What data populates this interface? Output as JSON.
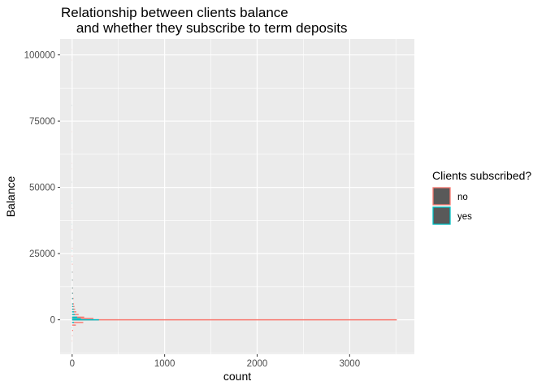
{
  "chart_data": {
    "type": "histogram",
    "orientation": "horizontal",
    "title": "Relationship between clients balance\n    and whether they subscribe to term deposits",
    "xlabel": "count",
    "ylabel": "Balance",
    "xlim": [
      -130,
      3700
    ],
    "ylim": [
      -13000,
      106000
    ],
    "x_ticks": [
      0,
      1000,
      2000,
      3000
    ],
    "x_tick_labels": [
      "0",
      "1000",
      "2000",
      "3000"
    ],
    "y_ticks": [
      0,
      25000,
      50000,
      75000,
      100000
    ],
    "y_tick_labels": [
      "0",
      "25000",
      "50000",
      "75000",
      "100000"
    ],
    "grid": true,
    "legend": {
      "title": "Clients subscribed?",
      "position": "right",
      "entries": [
        {
          "label": "no",
          "color": "#F8766D"
        },
        {
          "label": "yes",
          "color": "#00BFC4"
        }
      ]
    },
    "series": [
      {
        "name": "no",
        "color": "#F8766D",
        "bins": [
          {
            "y": -8000,
            "count": 2
          },
          {
            "y": -6000,
            "count": 4
          },
          {
            "y": -4000,
            "count": 10
          },
          {
            "y": -2000,
            "count": 40
          },
          {
            "y": -1000,
            "count": 120
          },
          {
            "y": 0,
            "count": 3510
          },
          {
            "y": 500,
            "count": 230
          },
          {
            "y": 1000,
            "count": 130
          },
          {
            "y": 2000,
            "count": 70
          },
          {
            "y": 3000,
            "count": 45
          },
          {
            "y": 4000,
            "count": 32
          },
          {
            "y": 5000,
            "count": 25
          },
          {
            "y": 6000,
            "count": 20
          },
          {
            "y": 8000,
            "count": 15
          },
          {
            "y": 10000,
            "count": 11
          },
          {
            "y": 12000,
            "count": 9
          },
          {
            "y": 15000,
            "count": 7
          },
          {
            "y": 18000,
            "count": 5
          },
          {
            "y": 21000,
            "count": 4
          },
          {
            "y": 24000,
            "count": 3
          },
          {
            "y": 27000,
            "count": 3
          },
          {
            "y": 30000,
            "count": 2
          },
          {
            "y": 34000,
            "count": 2
          },
          {
            "y": 38000,
            "count": 1
          },
          {
            "y": 42000,
            "count": 1
          },
          {
            "y": 45000,
            "count": 1
          },
          {
            "y": 52000,
            "count": 1
          },
          {
            "y": 57000,
            "count": 1
          },
          {
            "y": 59000,
            "count": 1
          },
          {
            "y": 64000,
            "count": 1
          },
          {
            "y": 71000,
            "count": 1
          },
          {
            "y": 81000,
            "count": 1
          },
          {
            "y": 98000,
            "count": 1
          },
          {
            "y": 102000,
            "count": 1
          }
        ]
      },
      {
        "name": "yes",
        "color": "#00BFC4",
        "bins": [
          {
            "y": -3000,
            "count": 2
          },
          {
            "y": -1000,
            "count": 20
          },
          {
            "y": 0,
            "count": 290
          },
          {
            "y": 500,
            "count": 95
          },
          {
            "y": 1000,
            "count": 55
          },
          {
            "y": 2000,
            "count": 30
          },
          {
            "y": 3000,
            "count": 20
          },
          {
            "y": 4000,
            "count": 15
          },
          {
            "y": 5000,
            "count": 12
          },
          {
            "y": 6000,
            "count": 10
          },
          {
            "y": 8000,
            "count": 8
          },
          {
            "y": 10000,
            "count": 7
          },
          {
            "y": 12000,
            "count": 5
          },
          {
            "y": 15000,
            "count": 4
          },
          {
            "y": 18000,
            "count": 3
          },
          {
            "y": 22000,
            "count": 2
          },
          {
            "y": 26000,
            "count": 2
          },
          {
            "y": 30000,
            "count": 1
          },
          {
            "y": 36000,
            "count": 1
          },
          {
            "y": 44000,
            "count": 1
          },
          {
            "y": 52000,
            "count": 1
          },
          {
            "y": 81000,
            "count": 1
          }
        ]
      }
    ]
  }
}
